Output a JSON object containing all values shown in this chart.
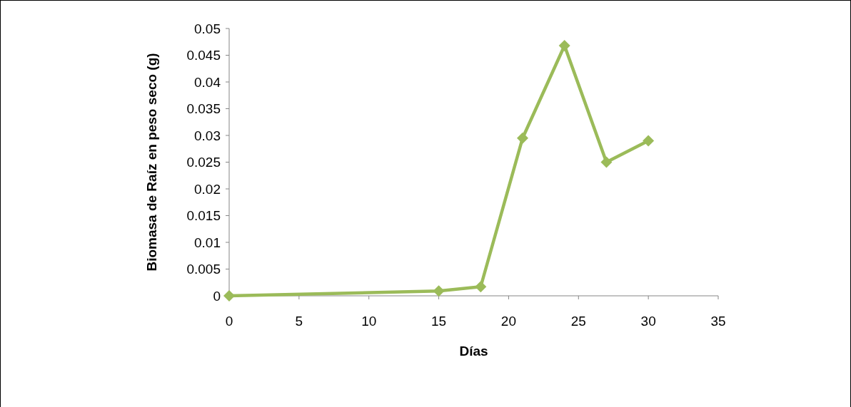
{
  "chart_data": {
    "type": "line",
    "xlabel": "Días",
    "ylabel": "Biomasa de Raíz en peso seco (g)",
    "x": [
      0,
      15,
      18,
      21,
      24,
      27,
      30
    ],
    "series": [
      {
        "color": "#9bbb59",
        "values": [
          0,
          0.0009,
          0.0017,
          0.0295,
          0.0468,
          0.025,
          0.029
        ]
      }
    ],
    "xlim": [
      0,
      35
    ],
    "xticks": [
      0,
      5,
      10,
      15,
      20,
      25,
      30,
      35
    ],
    "ylim": [
      0,
      0.05
    ],
    "yticks": [
      0,
      0.005,
      0.01,
      0.015,
      0.02,
      0.025,
      0.03,
      0.035,
      0.04,
      0.045,
      0.05
    ],
    "grid": false,
    "marker": "diamond",
    "line_style": "solid"
  }
}
